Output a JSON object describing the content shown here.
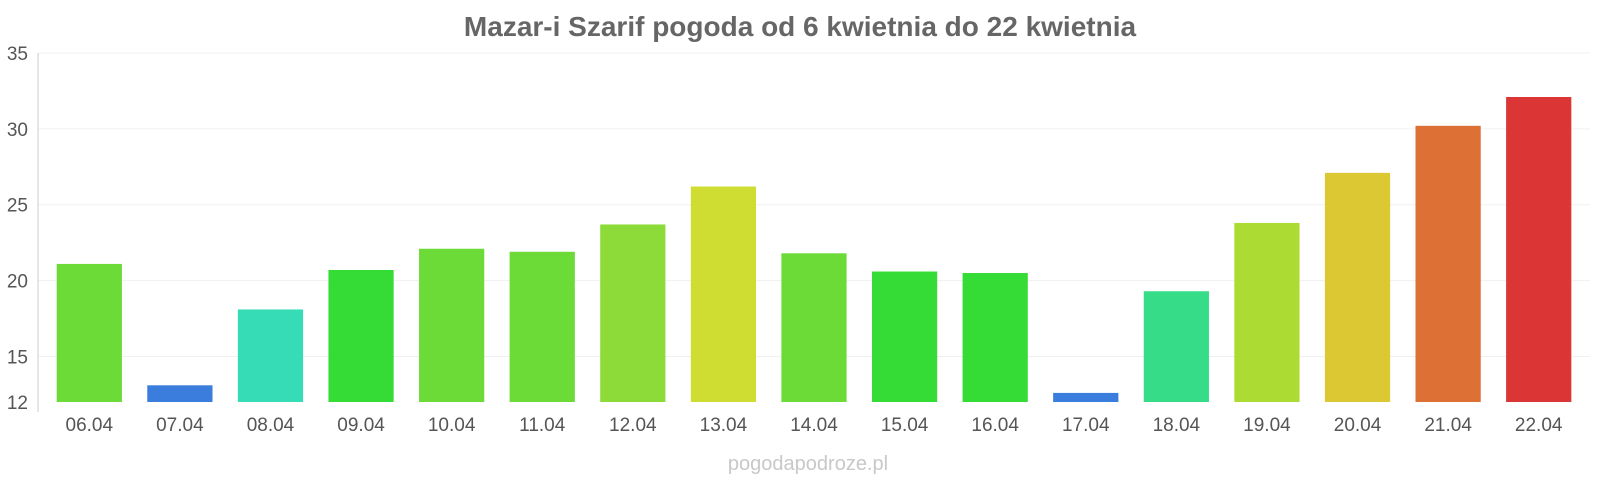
{
  "chart_data": {
    "type": "bar",
    "title": "Mazar-i Szarif pogoda od 6 kwietnia do 22 kwietnia",
    "xlabel": "",
    "ylabel": "",
    "categories": [
      "06.04",
      "07.04",
      "08.04",
      "09.04",
      "10.04",
      "11.04",
      "12.04",
      "13.04",
      "14.04",
      "15.04",
      "16.04",
      "17.04",
      "18.04",
      "19.04",
      "20.04",
      "21.04",
      "22.04"
    ],
    "values": [
      21.1,
      13.1,
      18.1,
      20.7,
      22.1,
      21.9,
      23.7,
      26.2,
      21.8,
      20.6,
      20.5,
      12.6,
      19.3,
      23.8,
      27.1,
      30.2,
      32.1
    ],
    "colors": [
      "#6cdb38",
      "#3a7ddc",
      "#36dcb5",
      "#36dc36",
      "#6cdb38",
      "#6cdb38",
      "#8ddb38",
      "#cfdd33",
      "#6cdb38",
      "#36dc36",
      "#36dc36",
      "#3a7ddc",
      "#36dc88",
      "#acdb33",
      "#dcc833",
      "#dd7035",
      "#dc3535"
    ],
    "ylim": [
      12,
      35
    ],
    "yticks": [
      12,
      15,
      20,
      25,
      30,
      35
    ],
    "grid": true,
    "legend": "none"
  },
  "watermark": "pogodapodroze.pl"
}
